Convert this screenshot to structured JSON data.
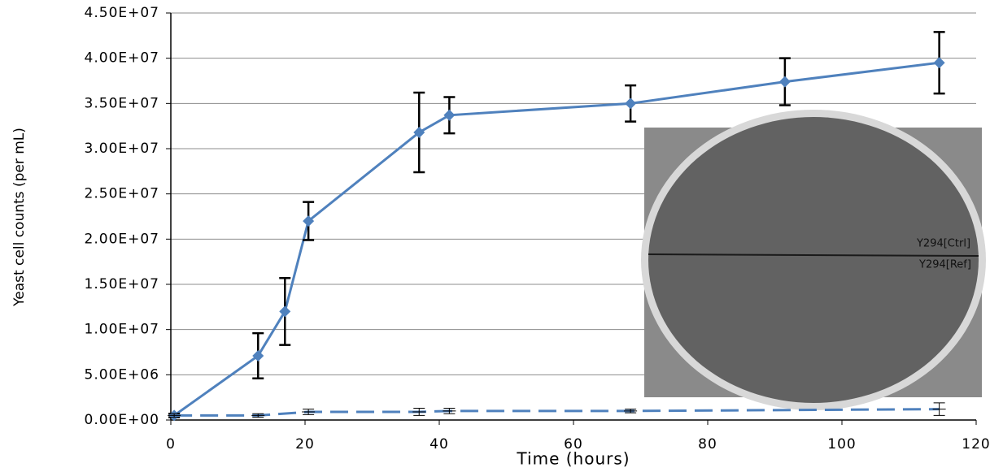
{
  "chart_data": {
    "type": "line",
    "y_label": "Yeast cell counts (per mL)",
    "x_label": "Time (hours)",
    "xlim": [
      0,
      120
    ],
    "xticks": [
      0,
      20,
      40,
      60,
      80,
      100,
      120
    ],
    "ylim": [
      0,
      45000000
    ],
    "yticks": [
      {
        "value": 0,
        "label": "0.00E+00"
      },
      {
        "value": 5000000,
        "label": "5.00E+06"
      },
      {
        "value": 10000000,
        "label": "1.00E+07"
      },
      {
        "value": 15000000,
        "label": "1.50E+07"
      },
      {
        "value": 20000000,
        "label": "2.00E+07"
      },
      {
        "value": 25000000,
        "label": "2.50E+07"
      },
      {
        "value": 30000000,
        "label": "3.00E+07"
      },
      {
        "value": 35000000,
        "label": "3.50E+07"
      },
      {
        "value": 40000000,
        "label": "4.00E+07"
      },
      {
        "value": 45000000,
        "label": "4.50E+07"
      }
    ],
    "grid": true,
    "series": [
      {
        "color": "#4f81bd",
        "dashed": false,
        "x": [
          0.5,
          13,
          17,
          20.5,
          37,
          41.5,
          68.5,
          91.5,
          114.5
        ],
        "values": [
          500000,
          7100000,
          12000000,
          22000000,
          31800000,
          33700000,
          35000000,
          37400000,
          39500000
        ],
        "errors": [
          200000,
          2500000,
          3700000,
          2100000,
          4400000,
          2000000,
          2000000,
          2600000,
          3400000
        ]
      },
      {
        "color": "#4f81bd",
        "dashed": true,
        "x": [
          0.5,
          13,
          20.5,
          37,
          41.5,
          68.5,
          114.5
        ],
        "values": [
          500000,
          500000,
          900000,
          900000,
          1000000,
          1000000,
          1200000
        ],
        "errors": [
          200000,
          200000,
          300000,
          400000,
          300000,
          200000,
          700000
        ]
      }
    ],
    "annotations": [
      "Y294[Ctrl]",
      "Y294[Ref]"
    ]
  }
}
